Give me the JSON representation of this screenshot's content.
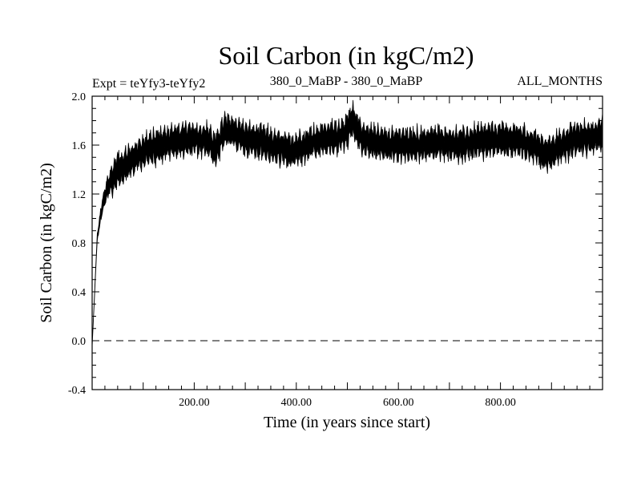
{
  "chart_data": {
    "type": "line",
    "title": "Soil Carbon (in kgC/m2)",
    "subtitle_left": "Expt = teYfy3-teYfy2",
    "subtitle_center": "380_0_MaBP - 380_0_MaBP",
    "subtitle_right": "ALL_MONTHS",
    "xlabel": "Time (in years since start)",
    "ylabel": "Soil Carbon (in kgC/m2)",
    "xlim": [
      0,
      1000
    ],
    "ylim": [
      -0.4,
      2.0
    ],
    "x_ticks": [
      200,
      400,
      600,
      800
    ],
    "x_tick_labels": [
      "200.00",
      "400.00",
      "600.00",
      "800.00"
    ],
    "y_ticks": [
      -0.4,
      0.0,
      0.4,
      0.8,
      1.2,
      1.6,
      2.0
    ],
    "y_tick_labels": [
      "-0.4",
      "0.0",
      "0.4",
      "0.8",
      "1.2",
      "1.6",
      "2.0"
    ],
    "reference_line": {
      "y": 0.0,
      "style": "dashed"
    },
    "series": [
      {
        "name": "Soil Carbon",
        "color": "#000000",
        "band_half_width": 0.09,
        "x": [
          0,
          5,
          10,
          20,
          30,
          50,
          75,
          100,
          130,
          160,
          200,
          230,
          240,
          260,
          280,
          300,
          330,
          360,
          390,
          420,
          450,
          480,
          500,
          510,
          530,
          560,
          600,
          640,
          680,
          720,
          760,
          800,
          840,
          870,
          890,
          920,
          950,
          980,
          1000
        ],
        "values": [
          -0.05,
          0.4,
          0.85,
          1.1,
          1.25,
          1.4,
          1.47,
          1.55,
          1.6,
          1.63,
          1.65,
          1.64,
          1.55,
          1.72,
          1.7,
          1.65,
          1.63,
          1.58,
          1.55,
          1.6,
          1.65,
          1.66,
          1.72,
          1.8,
          1.65,
          1.62,
          1.6,
          1.6,
          1.62,
          1.6,
          1.63,
          1.65,
          1.63,
          1.58,
          1.52,
          1.6,
          1.65,
          1.66,
          1.7
        ]
      }
    ]
  }
}
